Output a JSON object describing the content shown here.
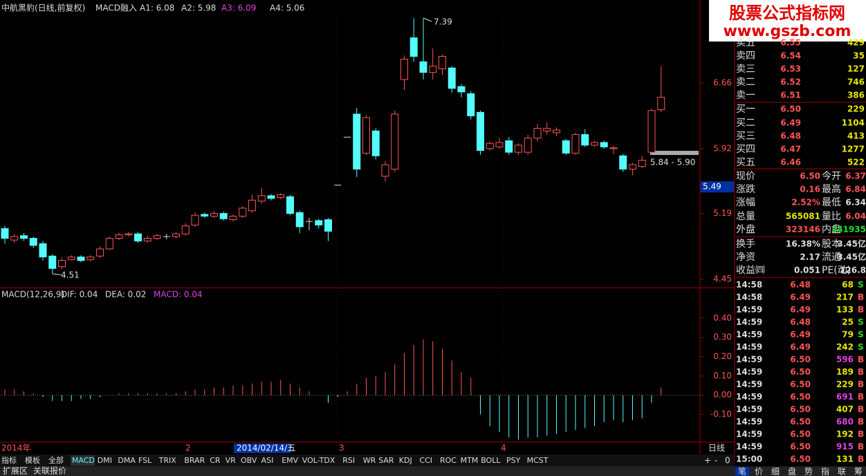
{
  "header": {
    "stock": "中航黑豹(日线,前复权)",
    "indicator": "MACD融入",
    "a1": "A1: 6.08",
    "a2": "A2: 5.98",
    "a3": "A3: 6.09",
    "a4": "A4: 5.06"
  },
  "logo": {
    "title": "股票公式指标网",
    "url": "www.gszb.com"
  },
  "chart": {
    "type": "candlestick",
    "ylim": [
      4.36,
      7.44
    ],
    "yticks": [
      6.66,
      5.92,
      5.19,
      4.45
    ],
    "cursor_price": 5.49,
    "annotations": {
      "high": "7.39",
      "low": "4.51",
      "range": "5.84 - 5.90"
    },
    "candles": [
      [
        5.02,
        4.91,
        5.05,
        4.85
      ],
      [
        4.89,
        4.93,
        4.96,
        4.86
      ],
      [
        4.94,
        4.91,
        4.97,
        4.88
      ],
      [
        4.91,
        4.83,
        4.93,
        4.8
      ],
      [
        4.85,
        4.7,
        4.88,
        4.66
      ],
      [
        4.71,
        4.57,
        4.73,
        4.51
      ],
      [
        4.59,
        4.66,
        4.69,
        4.56
      ],
      [
        4.67,
        4.7,
        4.72,
        4.66
      ],
      [
        4.7,
        4.66,
        4.72,
        4.64
      ],
      [
        4.67,
        4.7,
        4.72,
        4.65
      ],
      [
        4.71,
        4.79,
        4.82,
        4.69
      ],
      [
        4.79,
        4.91,
        4.93,
        4.78
      ],
      [
        4.91,
        4.95,
        4.97,
        4.89
      ],
      [
        4.95,
        4.96,
        4.98,
        4.93
      ],
      [
        4.96,
        4.88,
        4.98,
        4.86
      ],
      [
        4.88,
        4.91,
        4.94,
        4.86
      ],
      [
        4.91,
        4.94,
        4.96,
        4.89
      ],
      [
        4.93,
        4.93,
        4.96,
        4.9
      ],
      [
        4.93,
        4.96,
        4.98,
        4.91
      ],
      [
        4.96,
        5.05,
        5.08,
        4.94
      ],
      [
        5.06,
        5.17,
        5.2,
        5.04
      ],
      [
        5.18,
        5.16,
        5.2,
        5.14
      ],
      [
        5.16,
        5.19,
        5.22,
        5.14
      ],
      [
        5.19,
        5.13,
        5.21,
        5.11
      ],
      [
        5.12,
        5.16,
        5.18,
        5.1
      ],
      [
        5.16,
        5.25,
        5.27,
        5.14
      ],
      [
        5.22,
        5.34,
        5.4,
        5.2
      ],
      [
        5.33,
        5.39,
        5.48,
        5.3
      ],
      [
        5.39,
        5.36,
        5.41,
        5.34
      ],
      [
        5.37,
        5.4,
        5.42,
        5.35
      ],
      [
        5.38,
        5.19,
        5.4,
        5.17
      ],
      [
        5.2,
        5.04,
        5.22,
        4.97
      ],
      [
        5.1,
        5.1,
        5.14,
        5.0
      ],
      [
        5.11,
        5.06,
        5.13,
        5.02
      ],
      [
        5.12,
        4.99,
        5.14,
        4.88
      ],
      [
        5.51,
        5.51,
        5.51,
        5.51
      ],
      [
        6.05,
        6.05,
        6.05,
        6.05
      ],
      [
        6.31,
        5.69,
        6.38,
        5.6
      ],
      [
        5.87,
        6.27,
        6.3,
        5.85
      ],
      [
        6.12,
        5.84,
        6.15,
        5.8
      ],
      [
        5.61,
        5.74,
        5.78,
        5.55
      ],
      [
        5.69,
        6.31,
        6.35,
        5.66
      ],
      [
        6.7,
        6.93,
        6.97,
        6.58
      ],
      [
        7.17,
        6.96,
        7.39,
        6.9
      ],
      [
        6.9,
        6.78,
        7.39,
        6.7
      ],
      [
        6.78,
        6.85,
        7.05,
        6.7
      ],
      [
        6.82,
        6.96,
        6.98,
        6.75
      ],
      [
        6.83,
        6.6,
        6.85,
        6.55
      ],
      [
        6.62,
        6.56,
        6.65,
        6.5
      ],
      [
        6.54,
        6.29,
        6.57,
        6.25
      ],
      [
        6.33,
        5.9,
        6.35,
        5.85
      ],
      [
        5.92,
        5.98,
        6.0,
        5.9
      ],
      [
        5.94,
        5.99,
        6.04,
        5.92
      ],
      [
        6.01,
        5.88,
        6.05,
        5.85
      ],
      [
        5.88,
        5.96,
        5.98,
        5.85
      ],
      [
        5.88,
        6.04,
        6.08,
        5.85
      ],
      [
        6.04,
        6.15,
        6.2,
        6.0
      ],
      [
        6.12,
        6.15,
        6.22,
        6.08
      ],
      [
        6.1,
        6.13,
        6.16,
        6.06
      ],
      [
        6.01,
        5.87,
        6.03,
        5.85
      ],
      [
        5.87,
        6.08,
        6.1,
        5.85
      ],
      [
        6.08,
        5.96,
        6.14,
        5.94
      ],
      [
        5.96,
        5.99,
        6.01,
        5.94
      ],
      [
        5.99,
        5.94,
        6.01,
        5.92
      ],
      [
        5.92,
        5.93,
        5.95,
        5.86
      ],
      [
        5.84,
        5.69,
        5.86,
        5.66
      ],
      [
        5.69,
        5.74,
        5.76,
        5.62
      ],
      [
        5.72,
        5.79,
        5.84,
        5.7
      ],
      [
        5.88,
        6.35,
        6.37,
        5.86
      ],
      [
        6.36,
        6.5,
        6.85,
        6.33
      ]
    ]
  },
  "macd": {
    "type": "bar",
    "title": "MACD(12,26,9)",
    "dif": "DIF: 0.04",
    "dea": "DEA: 0.02",
    "macd": "MACD: 0.04",
    "ylim": [
      -0.24,
      0.5
    ],
    "yticks": [
      {
        "value": 0.4,
        "label": "0.40"
      },
      {
        "value": 0.3,
        "label": "0.30"
      },
      {
        "value": 0.2,
        "label": "0.20"
      },
      {
        "value": 0.1,
        "label": "0.10"
      },
      {
        "value": 0,
        "label": "0.00"
      },
      {
        "value": -0.1,
        "label": "-0.10"
      }
    ],
    "values": [
      0.03,
      0.03,
      0.02,
      0.01,
      -0.01,
      -0.03,
      -0.03,
      -0.03,
      -0.02,
      -0.02,
      -0.01,
      0.0,
      0.01,
      0.01,
      0.01,
      0.01,
      0.01,
      0.01,
      0.01,
      0.02,
      0.03,
      0.03,
      0.04,
      0.04,
      0.05,
      0.05,
      0.06,
      0.07,
      0.07,
      0.08,
      0.06,
      0.04,
      0.02,
      0.0,
      -0.04,
      -0.01,
      0.02,
      0.06,
      0.09,
      0.1,
      0.12,
      0.16,
      0.22,
      0.26,
      0.29,
      0.28,
      0.24,
      0.18,
      0.12,
      0.09,
      -0.1,
      -0.16,
      -0.19,
      -0.22,
      -0.23,
      -0.22,
      -0.22,
      -0.21,
      -0.2,
      -0.19,
      -0.18,
      -0.17,
      -0.16,
      -0.14,
      -0.13,
      -0.14,
      -0.13,
      -0.12,
      -0.04,
      0.04
    ]
  },
  "date_axis": [
    "2014年",
    "2",
    "2014/02/14/五",
    "3",
    "4"
  ],
  "period": "日线",
  "tabs": [
    "指标",
    "模板",
    "全部",
    "MACD",
    "DMI",
    "DMA",
    "FSL",
    "TRIX",
    "BRAR",
    "CR",
    "VR",
    "OBV",
    "ASI",
    "EMV",
    "VOL-TDX",
    "RSI",
    "WR",
    "SAR",
    "KDJ",
    "CCI",
    "ROC",
    "MTM",
    "BOLL",
    "PSY",
    "MCST"
  ],
  "zoom": [
    "+",
    "-",
    "0"
  ],
  "bottom_tabs": [
    "扩展区",
    "关联报价"
  ],
  "order_book": [
    [
      "卖五",
      "6.55",
      "429"
    ],
    [
      "卖四",
      "6.54",
      "35"
    ],
    [
      "卖三",
      "6.53",
      "127"
    ],
    [
      "卖二",
      "6.52",
      "746"
    ],
    [
      "卖一",
      "6.51",
      "386"
    ],
    [
      "买一",
      "6.50",
      "229"
    ],
    [
      "买二",
      "6.49",
      "1104"
    ],
    [
      "买三",
      "6.48",
      "413"
    ],
    [
      "买四",
      "6.47",
      "1277"
    ],
    [
      "买五",
      "6.46",
      "522"
    ]
  ],
  "quotes": [
    [
      "现价",
      "6.50",
      "今开",
      "6.37"
    ],
    [
      "涨跌",
      "0.16",
      "最高",
      "6.84"
    ],
    [
      "涨幅",
      "2.52%",
      "最低",
      "6.34"
    ],
    [
      "总量",
      "565081",
      "量比",
      "6.04"
    ],
    [
      "外盘",
      "323146",
      "内盘",
      "241935"
    ],
    [
      "换手",
      "16.38%",
      "股本",
      "3.45亿"
    ],
    [
      "净资",
      "2.17",
      "流通",
      "3.45亿"
    ],
    [
      "收益㈣",
      "0.051",
      "PE(动)",
      "126.8"
    ]
  ],
  "trades": [
    [
      "14:58",
      "6.48",
      "68",
      "S"
    ],
    [
      "14:58",
      "6.49",
      "217",
      "B"
    ],
    [
      "14:59",
      "6.49",
      "133",
      "B"
    ],
    [
      "14:59",
      "6.48",
      "25",
      "S"
    ],
    [
      "14:59",
      "6.49",
      "79",
      "S"
    ],
    [
      "14:59",
      "6.49",
      "242",
      "S"
    ],
    [
      "14:59",
      "6.50",
      "596",
      "B"
    ],
    [
      "14:59",
      "6.50",
      "189",
      "B"
    ],
    [
      "14:59",
      "6.50",
      "229",
      "B"
    ],
    [
      "14:59",
      "6.50",
      "691",
      "B"
    ],
    [
      "14:59",
      "6.50",
      "407",
      "B"
    ],
    [
      "14:59",
      "6.50",
      "680",
      "B"
    ],
    [
      "14:59",
      "6.50",
      "192",
      "B"
    ],
    [
      "14:59",
      "6.50",
      "915",
      "B"
    ],
    [
      "15:00",
      "6.50",
      "131",
      "B"
    ]
  ],
  "side_tabs": [
    "笔",
    "价",
    "细",
    "盘",
    "势",
    "指",
    "联",
    "筹"
  ]
}
